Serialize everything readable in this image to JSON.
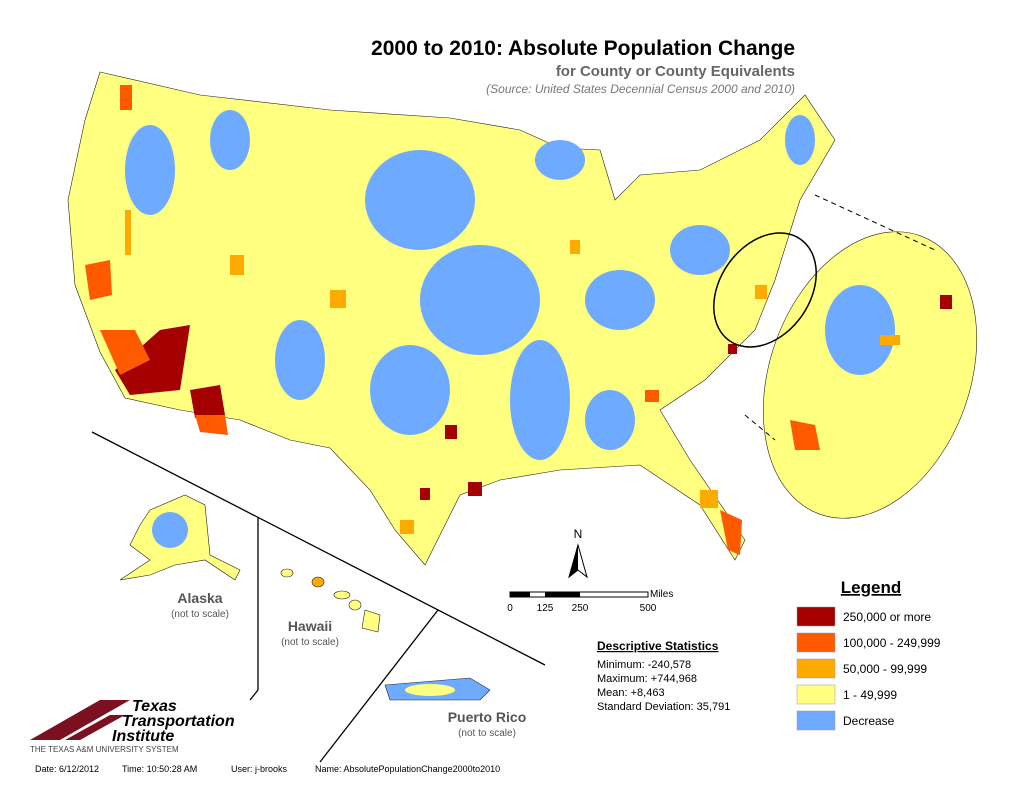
{
  "header": {
    "title": "2000 to 2010: Absolute Population Change",
    "subtitle": "for County or County Equivalents",
    "source": "(Source: United States Decennial Census 2000 and 2010)"
  },
  "legend": {
    "title": "Legend",
    "items": [
      {
        "label": "250,000 or more",
        "color": "#a50000"
      },
      {
        "label": "100,000 - 249,999",
        "color": "#ff5a00"
      },
      {
        "label": "50,000 - 99,999",
        "color": "#ffaa00"
      },
      {
        "label": "1 - 49,999",
        "color": "#ffff80"
      },
      {
        "label": "Decrease",
        "color": "#6eaaff"
      }
    ]
  },
  "statistics": {
    "title": "Descriptive Statistics",
    "lines": [
      "Minimum:  -240,578",
      "Maximum:  +744,968",
      "Mean:  +8,463",
      "Standard Deviation:  35,791"
    ]
  },
  "scale": {
    "unit": "Miles",
    "ticks": [
      "0",
      "125",
      "250",
      "500"
    ]
  },
  "north": "N",
  "insets": [
    {
      "name": "Alaska",
      "note": "(not to scale)"
    },
    {
      "name": "Hawaii",
      "note": "(not to scale)"
    },
    {
      "name": "Puerto Rico",
      "note": "(not to scale)"
    }
  ],
  "logo": {
    "line1": "Texas",
    "line2": "Transportation",
    "line3": "Institute",
    "system": "THE TEXAS A&M UNIVERSITY SYSTEM"
  },
  "footer": [
    "Date: 6/12/2012",
    "Time: 10:50:28 AM",
    "User: j-brooks",
    "Name: AbsolutePopulationChange2000to2010"
  ]
}
